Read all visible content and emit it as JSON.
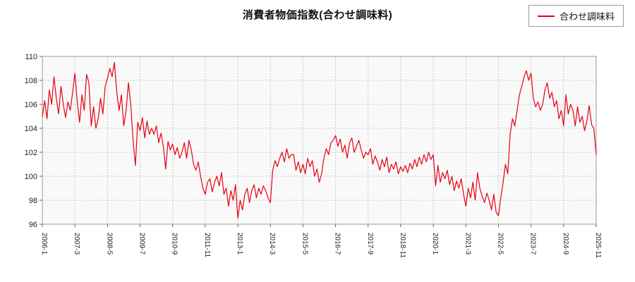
{
  "title": "消費者物価指数(合わせ調味料)",
  "legend": {
    "label": "合わせ調味料"
  },
  "chart_data": {
    "type": "line",
    "title": "消費者物価指数(合わせ調味料)",
    "series_name": "合わせ調味料",
    "line_color": "#e60012",
    "grid": true,
    "legend_position": "top-right",
    "x_start": "2006-1",
    "x_end": "2025-11",
    "x_tick_labels": [
      "2006-1",
      "2007-3",
      "2008-5",
      "2009-7",
      "2010-9",
      "2011-11",
      "2013-1",
      "2014-3",
      "2015-5",
      "2016-7",
      "2017-9",
      "2018-11",
      "2020-1",
      "2021-3",
      "2022-5",
      "2023-7",
      "2024-9",
      "2025-11"
    ],
    "x_tick_indices": [
      0,
      14,
      28,
      42,
      56,
      70,
      84,
      98,
      112,
      126,
      140,
      154,
      168,
      182,
      196,
      210,
      224,
      238
    ],
    "ylim": [
      96,
      110
    ],
    "y_ticks": [
      96,
      98,
      100,
      102,
      104,
      106,
      108,
      110
    ],
    "values": [
      105.0,
      106.3,
      104.8,
      107.2,
      106.0,
      108.3,
      106.5,
      105.2,
      107.5,
      106.0,
      104.9,
      106.2,
      105.5,
      107.0,
      108.6,
      106.2,
      104.5,
      106.8,
      105.5,
      108.5,
      107.8,
      104.2,
      105.8,
      104.0,
      104.8,
      106.5,
      105.2,
      107.5,
      108.2,
      109.0,
      108.3,
      109.5,
      107.0,
      105.5,
      106.8,
      104.2,
      105.5,
      107.8,
      106.0,
      103.0,
      100.9,
      104.5,
      103.8,
      104.9,
      103.2,
      104.6,
      103.5,
      104.0,
      103.5,
      104.2,
      102.8,
      103.6,
      102.5,
      100.6,
      102.9,
      102.2,
      102.7,
      101.8,
      102.4,
      101.5,
      102.0,
      102.8,
      101.5,
      103.0,
      102.2,
      101.0,
      100.5,
      101.2,
      100.0,
      99.0,
      98.5,
      99.5,
      99.8,
      98.7,
      99.5,
      100.0,
      99.2,
      100.3,
      98.5,
      99.0,
      97.5,
      98.8,
      98.0,
      99.3,
      96.5,
      98.0,
      97.2,
      98.5,
      99.0,
      97.8,
      98.8,
      99.3,
      98.2,
      99.0,
      98.5,
      99.2,
      98.8,
      98.2,
      97.8,
      100.5,
      101.3,
      100.8,
      101.5,
      102.0,
      101.2,
      102.3,
      101.5,
      101.8,
      101.8,
      100.5,
      101.2,
      100.3,
      101.0,
      100.2,
      101.5,
      100.8,
      101.3,
      100.0,
      100.6,
      99.5,
      100.2,
      101.5,
      102.3,
      101.8,
      102.8,
      103.0,
      103.4,
      102.5,
      103.1,
      102.0,
      102.6,
      101.5,
      102.8,
      103.2,
      102.0,
      102.5,
      103.0,
      102.2,
      101.5,
      102.0,
      101.8,
      102.3,
      101.0,
      101.7,
      101.2,
      100.5,
      101.4,
      100.8,
      101.6,
      100.3,
      101.0,
      100.6,
      101.2,
      100.2,
      100.8,
      100.4,
      100.9,
      100.3,
      101.1,
      100.6,
      101.4,
      100.8,
      101.6,
      101.0,
      101.8,
      101.2,
      102.0,
      101.4,
      101.8,
      99.2,
      100.9,
      99.5,
      100.3,
      99.8,
      100.5,
      99.3,
      100.0,
      98.8,
      99.6,
      99.0,
      99.8,
      98.5,
      97.5,
      99.0,
      98.2,
      99.5,
      98.0,
      100.3,
      99.0,
      98.3,
      97.8,
      98.6,
      98.0,
      97.2,
      98.5,
      97.0,
      96.7,
      98.2,
      99.5,
      101.0,
      100.2,
      103.5,
      104.8,
      104.2,
      105.5,
      106.8,
      107.5,
      108.3,
      108.8,
      108.0,
      108.6,
      106.5,
      105.8,
      106.2,
      105.5,
      106.0,
      107.2,
      107.8,
      106.5,
      107.0,
      105.8,
      106.3,
      104.8,
      105.5,
      104.2,
      106.8,
      105.2,
      106.0,
      105.5,
      104.2,
      105.8,
      104.5,
      105.0,
      103.8,
      104.6,
      105.9,
      104.3,
      104.0,
      101.8
    ]
  }
}
